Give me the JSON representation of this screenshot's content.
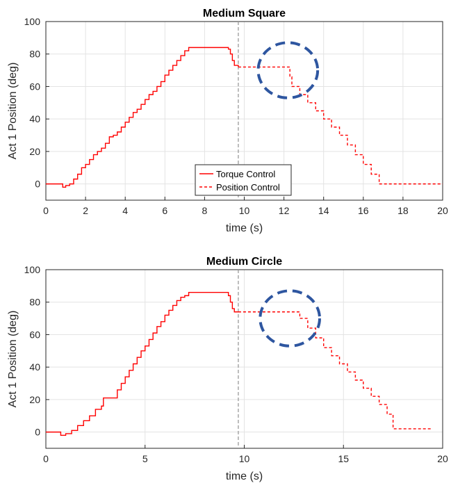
{
  "chart_data": [
    {
      "type": "line",
      "title": "Medium Square",
      "xlabel": "time (s)",
      "ylabel": "Act 1 Position (deg)",
      "xlim": [
        0,
        20
      ],
      "ylim": [
        -10,
        100
      ],
      "xticks": [
        0,
        2,
        4,
        6,
        8,
        10,
        12,
        14,
        16,
        18,
        20
      ],
      "yticks": [
        0,
        20,
        40,
        60,
        80,
        100
      ],
      "grid": true,
      "legend_position": "bottom-center",
      "colors": {
        "series": "#ff0000",
        "divider": "#999999",
        "annotation": "#2e56a0"
      },
      "divider_x": 9.7,
      "annotation_circle": {
        "cx": 12.2,
        "cy": 70,
        "rx": 1.5,
        "ry": 17
      },
      "series": [
        {
          "name": "Torque Control",
          "style": "solid",
          "x": [
            0,
            0.8,
            0.85,
            1.0,
            1.2,
            1.4,
            1.6,
            1.8,
            2.0,
            2.2,
            2.4,
            2.6,
            2.8,
            3.0,
            3.2,
            3.4,
            3.6,
            3.8,
            4.0,
            4.2,
            4.4,
            4.6,
            4.8,
            5.0,
            5.2,
            5.4,
            5.6,
            5.8,
            6.0,
            6.2,
            6.4,
            6.6,
            6.8,
            7.0,
            7.2,
            7.4,
            7.6,
            8.0,
            8.5,
            9.0,
            9.2,
            9.3,
            9.4,
            9.5,
            9.7
          ],
          "y": [
            0,
            0,
            -2,
            -1,
            0,
            3,
            6,
            10,
            12,
            15,
            18,
            20,
            22,
            25,
            29,
            30,
            32,
            35,
            38,
            41,
            44,
            46,
            49,
            52,
            55,
            57,
            60,
            63,
            67,
            70,
            73,
            76,
            79,
            82,
            84,
            84,
            84,
            84,
            84,
            84,
            83,
            80,
            76,
            73,
            72
          ]
        },
        {
          "name": "Position Control",
          "style": "dashed",
          "x": [
            9.7,
            12.2,
            12.3,
            12.4,
            12.8,
            13.2,
            13.6,
            14.0,
            14.4,
            14.8,
            15.2,
            15.6,
            16.0,
            16.4,
            16.8,
            20.0
          ],
          "y": [
            72,
            72,
            66,
            60,
            55,
            50,
            45,
            40,
            35,
            30,
            24,
            18,
            12,
            6,
            0,
            0
          ]
        }
      ]
    },
    {
      "type": "line",
      "title": "Medium Circle",
      "xlabel": "time (s)",
      "ylabel": "Act 1 Position (deg)",
      "xlim": [
        0,
        20
      ],
      "ylim": [
        -10,
        100
      ],
      "xticks": [
        0,
        5,
        10,
        15,
        20
      ],
      "yticks": [
        0,
        20,
        40,
        60,
        80,
        100
      ],
      "grid": true,
      "legend_position": "none",
      "colors": {
        "series": "#ff0000",
        "divider": "#999999",
        "annotation": "#2e56a0"
      },
      "divider_x": 9.7,
      "annotation_circle": {
        "cx": 12.3,
        "cy": 70,
        "rx": 1.5,
        "ry": 17
      },
      "series": [
        {
          "name": "Torque Control",
          "style": "solid",
          "x": [
            0,
            0.7,
            0.75,
            1.0,
            1.3,
            1.6,
            1.9,
            2.2,
            2.5,
            2.8,
            2.9,
            3.2,
            3.4,
            3.6,
            3.8,
            4.0,
            4.2,
            4.4,
            4.6,
            4.8,
            5.0,
            5.2,
            5.4,
            5.6,
            5.8,
            6.0,
            6.2,
            6.4,
            6.6,
            6.8,
            7.0,
            7.2,
            7.4,
            7.6,
            8.0,
            8.5,
            9.0,
            9.2,
            9.3,
            9.4,
            9.5,
            9.7
          ],
          "y": [
            0,
            0,
            -2,
            -1,
            1,
            4,
            7,
            10,
            14,
            16,
            21,
            21,
            21,
            26,
            30,
            34,
            38,
            42,
            46,
            50,
            53,
            57,
            61,
            65,
            68,
            72,
            75,
            78,
            81,
            83,
            84,
            86,
            86,
            86,
            86,
            86,
            86,
            84,
            80,
            76,
            74,
            74
          ]
        },
        {
          "name": "Position Control",
          "style": "dashed",
          "x": [
            9.7,
            12.5,
            12.8,
            13.2,
            13.6,
            14.0,
            14.4,
            14.8,
            15.2,
            15.6,
            16.0,
            16.4,
            16.8,
            17.2,
            17.5,
            19.5
          ],
          "y": [
            74,
            74,
            70,
            64,
            58,
            52,
            47,
            42,
            37,
            32,
            27,
            22,
            17,
            11,
            2,
            2
          ]
        }
      ]
    }
  ]
}
